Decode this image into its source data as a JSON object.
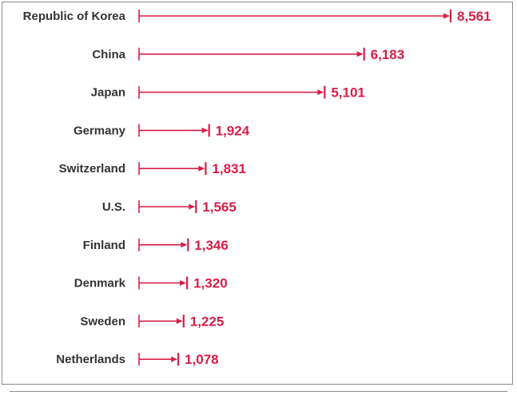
{
  "colors": {
    "accent": "#d81e47",
    "label_text": "#333333",
    "frame": "#8a8a8a"
  },
  "chart_data": {
    "type": "bar",
    "orientation": "horizontal",
    "title": "",
    "xlabel": "",
    "ylabel": "",
    "grid": false,
    "legend": "none",
    "xlim": [
      0,
      9000
    ],
    "categories": [
      "Republic of Korea",
      "China",
      "Japan",
      "Germany",
      "Switzerland",
      "U.S.",
      "Finland",
      "Denmark",
      "Sweden",
      "Netherlands"
    ],
    "values": [
      8561,
      6183,
      5101,
      1924,
      1831,
      1565,
      1346,
      1320,
      1225,
      1078
    ],
    "value_labels": [
      "8,561",
      "6,183",
      "5,101",
      "1,924",
      "1,831",
      "1,565",
      "1,346",
      "1,320",
      "1,225",
      "1,078"
    ]
  }
}
